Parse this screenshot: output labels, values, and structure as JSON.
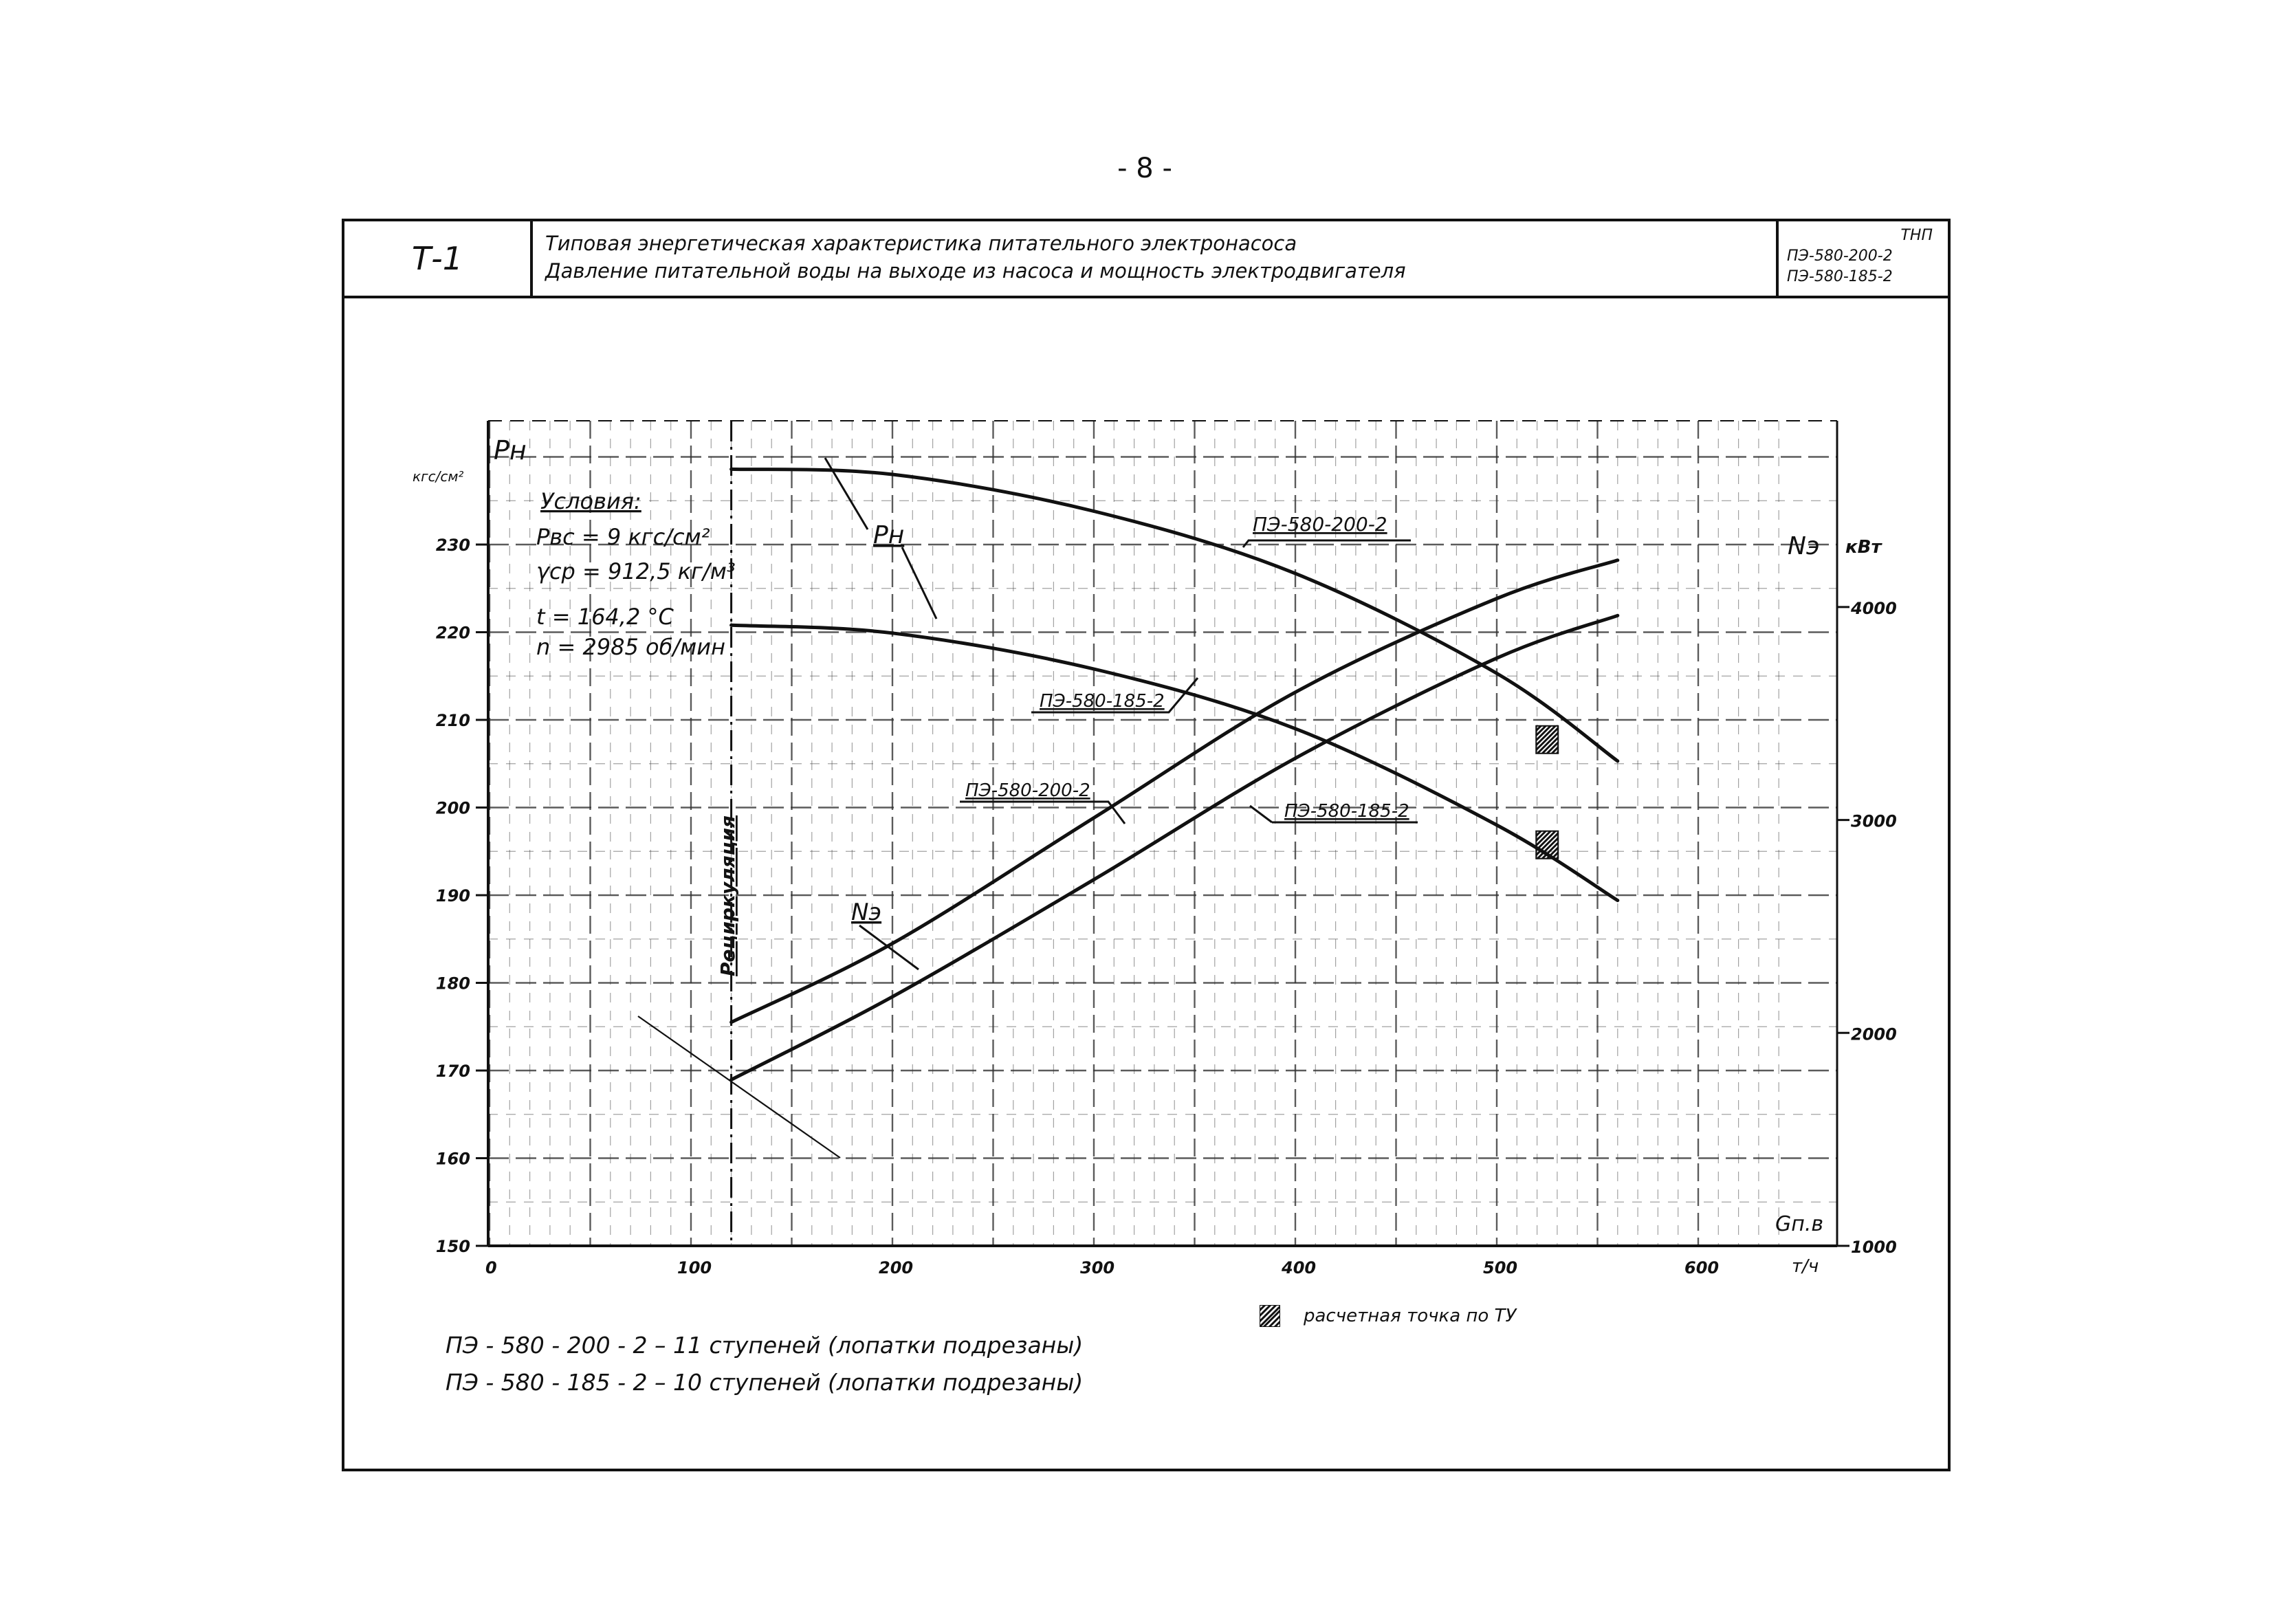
{
  "page_number": "- 8 -",
  "title_block": {
    "sheet_code": "Т-1",
    "title_line1": "Типовая энергетическая характеристика питательного электронасоса",
    "title_line2": "Давление питательной воды на выходе из насоса и мощность электродвигателя",
    "series_label": "ТНП",
    "model_1": "ПЭ-580-200-2",
    "model_2": "ПЭ-580-185-2"
  },
  "conditions": {
    "heading": "Условия:",
    "line1": "Pвс = 9 кгс/см²",
    "line2": "γср = 912,5 кг/м³",
    "line3": "t = 164,2 °С",
    "line4": "n = 2985 об/мин"
  },
  "recirculation_label": "Рециркуляция",
  "curve_labels": {
    "pn": "Pн",
    "ne": "Nэ",
    "pn_200": "ПЭ-580-200-2",
    "pn_185": "ПЭ-580-185-2",
    "ne_200": "ПЭ-580-200-2",
    "ne_185": "ПЭ-580-185-2"
  },
  "legend_note": "расчетная точка по ТУ",
  "footnotes": {
    "line1": "ПЭ - 580 - 200 - 2  –  11 ступеней (лопатки подрезаны)",
    "line2": "ПЭ - 580 - 185 - 2  –  10 ступеней (лопатки подрезаны)"
  },
  "colors": {
    "ink": "#111111",
    "grid": "#333333",
    "paper": "#ffffff"
  },
  "chart_data": {
    "type": "line",
    "xlabel": "Gп.в",
    "xunit": "т/ч",
    "xlim": [
      0,
      640
    ],
    "x_ticks": [
      "0",
      "100",
      "200",
      "300",
      "400",
      "500",
      "600"
    ],
    "x_tick_values": [
      0,
      100,
      200,
      300,
      400,
      500,
      600
    ],
    "ylabel_left": "Pн",
    "yunit_left": "кгс/см²",
    "ylim_left": [
      150,
      240
    ],
    "y_ticks_left": [
      "150",
      "160",
      "170",
      "180",
      "190",
      "200",
      "210",
      "220",
      "230"
    ],
    "y_tick_values_left": [
      150,
      160,
      170,
      180,
      190,
      200,
      210,
      220,
      230
    ],
    "ylabel_right": "Nэ",
    "yunit_right": "кВт",
    "ylim_right": [
      1000,
      4300
    ],
    "y_ticks_right": [
      "1000",
      "2000",
      "3000",
      "4000"
    ],
    "y_tick_values_right": [
      1000,
      2000,
      3000,
      4000
    ],
    "grid": true,
    "recirculation_x": 120,
    "series": [
      {
        "name": "ПЭ-580-200-2",
        "quantity": "Pн",
        "axis": "left",
        "x": [
          120,
          200,
          300,
          400,
          500,
          560
        ],
        "y": [
          238.6,
          238.0,
          233.8,
          226.7,
          215.3,
          205.3
        ]
      },
      {
        "name": "ПЭ-580-185-2",
        "quantity": "Pн",
        "axis": "left",
        "x": [
          120,
          200,
          300,
          400,
          500,
          560
        ],
        "y": [
          220.8,
          219.9,
          215.8,
          209.0,
          198.0,
          189.4
        ]
      },
      {
        "name": "ПЭ-580-200-2",
        "quantity": "Nэ",
        "axis": "right",
        "x": [
          120,
          200,
          300,
          400,
          500,
          560
        ],
        "y": [
          2050,
          2420,
          3010,
          3600,
          4040,
          4220
        ]
      },
      {
        "name": "ПЭ-580-185-2",
        "quantity": "Nэ",
        "axis": "right",
        "x": [
          120,
          200,
          300,
          400,
          500,
          560
        ],
        "y": [
          1780,
          2170,
          2720,
          3290,
          3760,
          3960
        ]
      }
    ],
    "design_points": [
      {
        "x": 525,
        "y": 209,
        "series": "ПЭ-580-200-2"
      },
      {
        "x": 525,
        "y": 197,
        "series": "ПЭ-580-185-2"
      }
    ]
  }
}
